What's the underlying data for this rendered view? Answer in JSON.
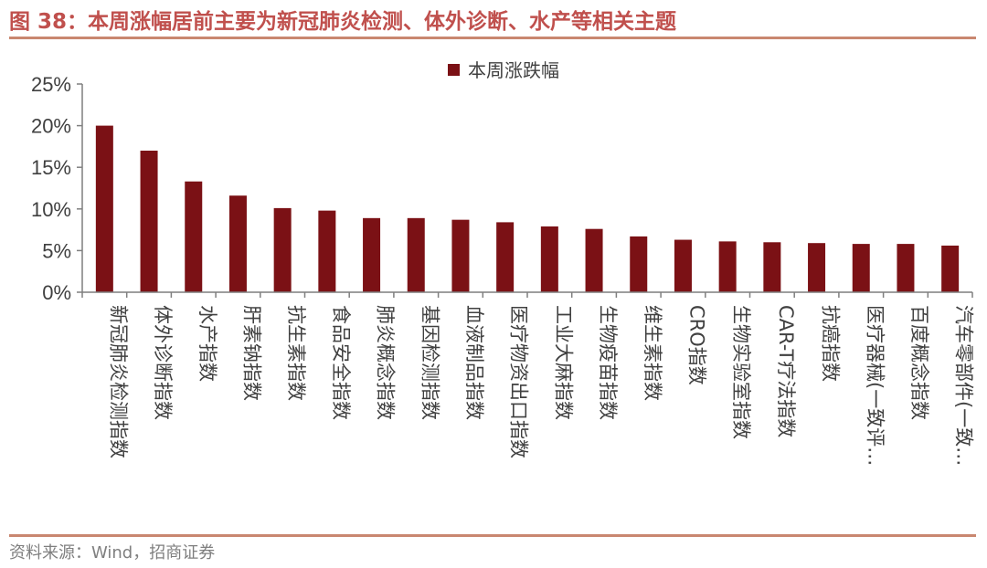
{
  "figure": {
    "title": "图 38：本周涨幅居前主要为新冠肺炎检测、体外诊断、水产等相关主题",
    "source": "资料来源：Wind，招商证券"
  },
  "colors": {
    "bar": "#7b1115",
    "title": "#c0504d",
    "rule": "#c98770"
  },
  "chart_data": {
    "type": "bar",
    "categories": [
      "新冠肺炎检测指数",
      "体外诊断指数",
      "水产指数",
      "肝素钠指数",
      "抗生素指数",
      "食品安全指数",
      "肺炎概念指数",
      "基因检测指数",
      "血液制品指数",
      "医疗物资出口指数",
      "工业大麻指数",
      "生物疫苗指数",
      "维生素指数",
      "CRO指数",
      "生物实验室指数",
      "CAR-T疗法指数",
      "抗癌指数",
      "医疗器械(一致评…",
      "百度概念指数",
      "汽车零部件(一致…"
    ],
    "series": [
      {
        "name": "本周涨跌幅",
        "values": [
          20.0,
          17.0,
          13.3,
          11.6,
          10.1,
          9.8,
          8.9,
          8.9,
          8.7,
          8.4,
          7.9,
          7.6,
          6.7,
          6.3,
          6.1,
          6.0,
          5.9,
          5.8,
          5.8,
          5.6
        ]
      }
    ],
    "ylim": [
      0,
      25
    ],
    "yticks": [
      "0%",
      "5%",
      "10%",
      "15%",
      "20%",
      "25%"
    ],
    "legend": "top-center",
    "grid": false
  }
}
